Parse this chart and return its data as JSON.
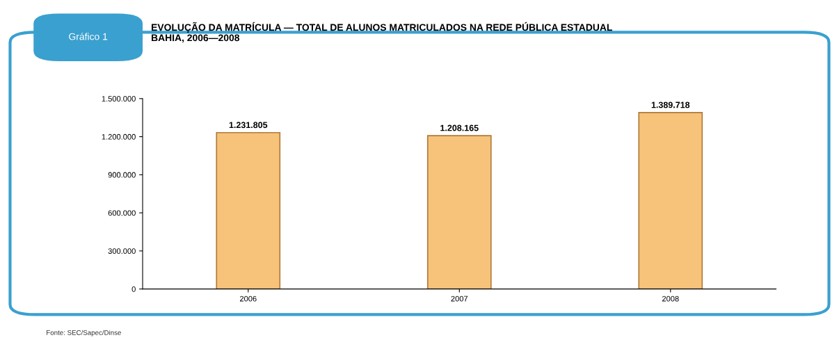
{
  "chart_data": {
    "type": "bar",
    "title": "EVOLUÇÃO DA MATRÍCULA — TOTAL DE ALUNOS MATRICULADOS NA REDE PÚBLICA ESTADUAL\nBAHIA, 2006—2008",
    "categories": [
      "2006",
      "2007",
      "2008"
    ],
    "values": [
      1231805,
      1208165,
      1389718
    ],
    "value_labels": [
      "1.231.805",
      "1.208.165",
      "1.389.718"
    ],
    "color": "#f7c27a",
    "ylim": [
      0,
      1500000
    ],
    "yticks": [
      {
        "value": 0,
        "label": "0"
      },
      {
        "value": 300000,
        "label": "300.000"
      },
      {
        "value": 600000,
        "label": "600.000"
      },
      {
        "value": 900000,
        "label": "900.000"
      },
      {
        "value": 1200000,
        "label": "1.200.000"
      },
      {
        "value": 1500000,
        "label": "1.500.000"
      }
    ],
    "grid": false,
    "legend": false,
    "annotations": [
      "Gráfico 1",
      "Fonte: SEC/Sapec/Dinse"
    ]
  }
}
